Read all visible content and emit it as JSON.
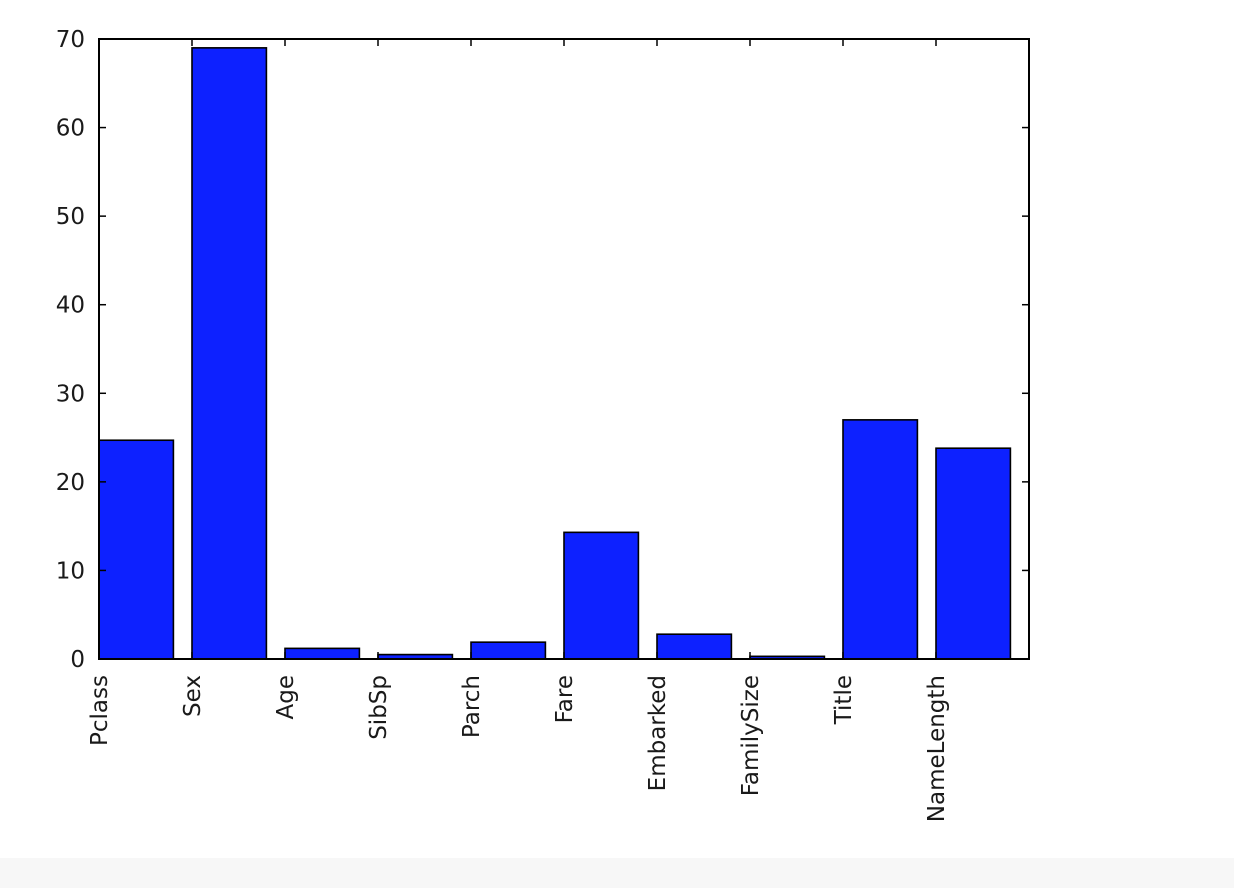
{
  "chart_data": {
    "type": "bar",
    "categories": [
      "Pclass",
      "Sex",
      "Age",
      "SibSp",
      "Parch",
      "Fare",
      "Embarked",
      "FamilySize",
      "Title",
      "NameLength"
    ],
    "values": [
      24.7,
      69.0,
      1.2,
      0.5,
      1.9,
      14.3,
      2.8,
      0.3,
      27.0,
      23.8
    ],
    "ylim": [
      0,
      70
    ],
    "yticks": [
      0,
      10,
      20,
      30,
      40,
      50,
      60,
      70
    ],
    "title": "",
    "xlabel": "",
    "ylabel": "",
    "grid": false,
    "bar_color": "#0d21ff",
    "edge_color": "#000000"
  }
}
